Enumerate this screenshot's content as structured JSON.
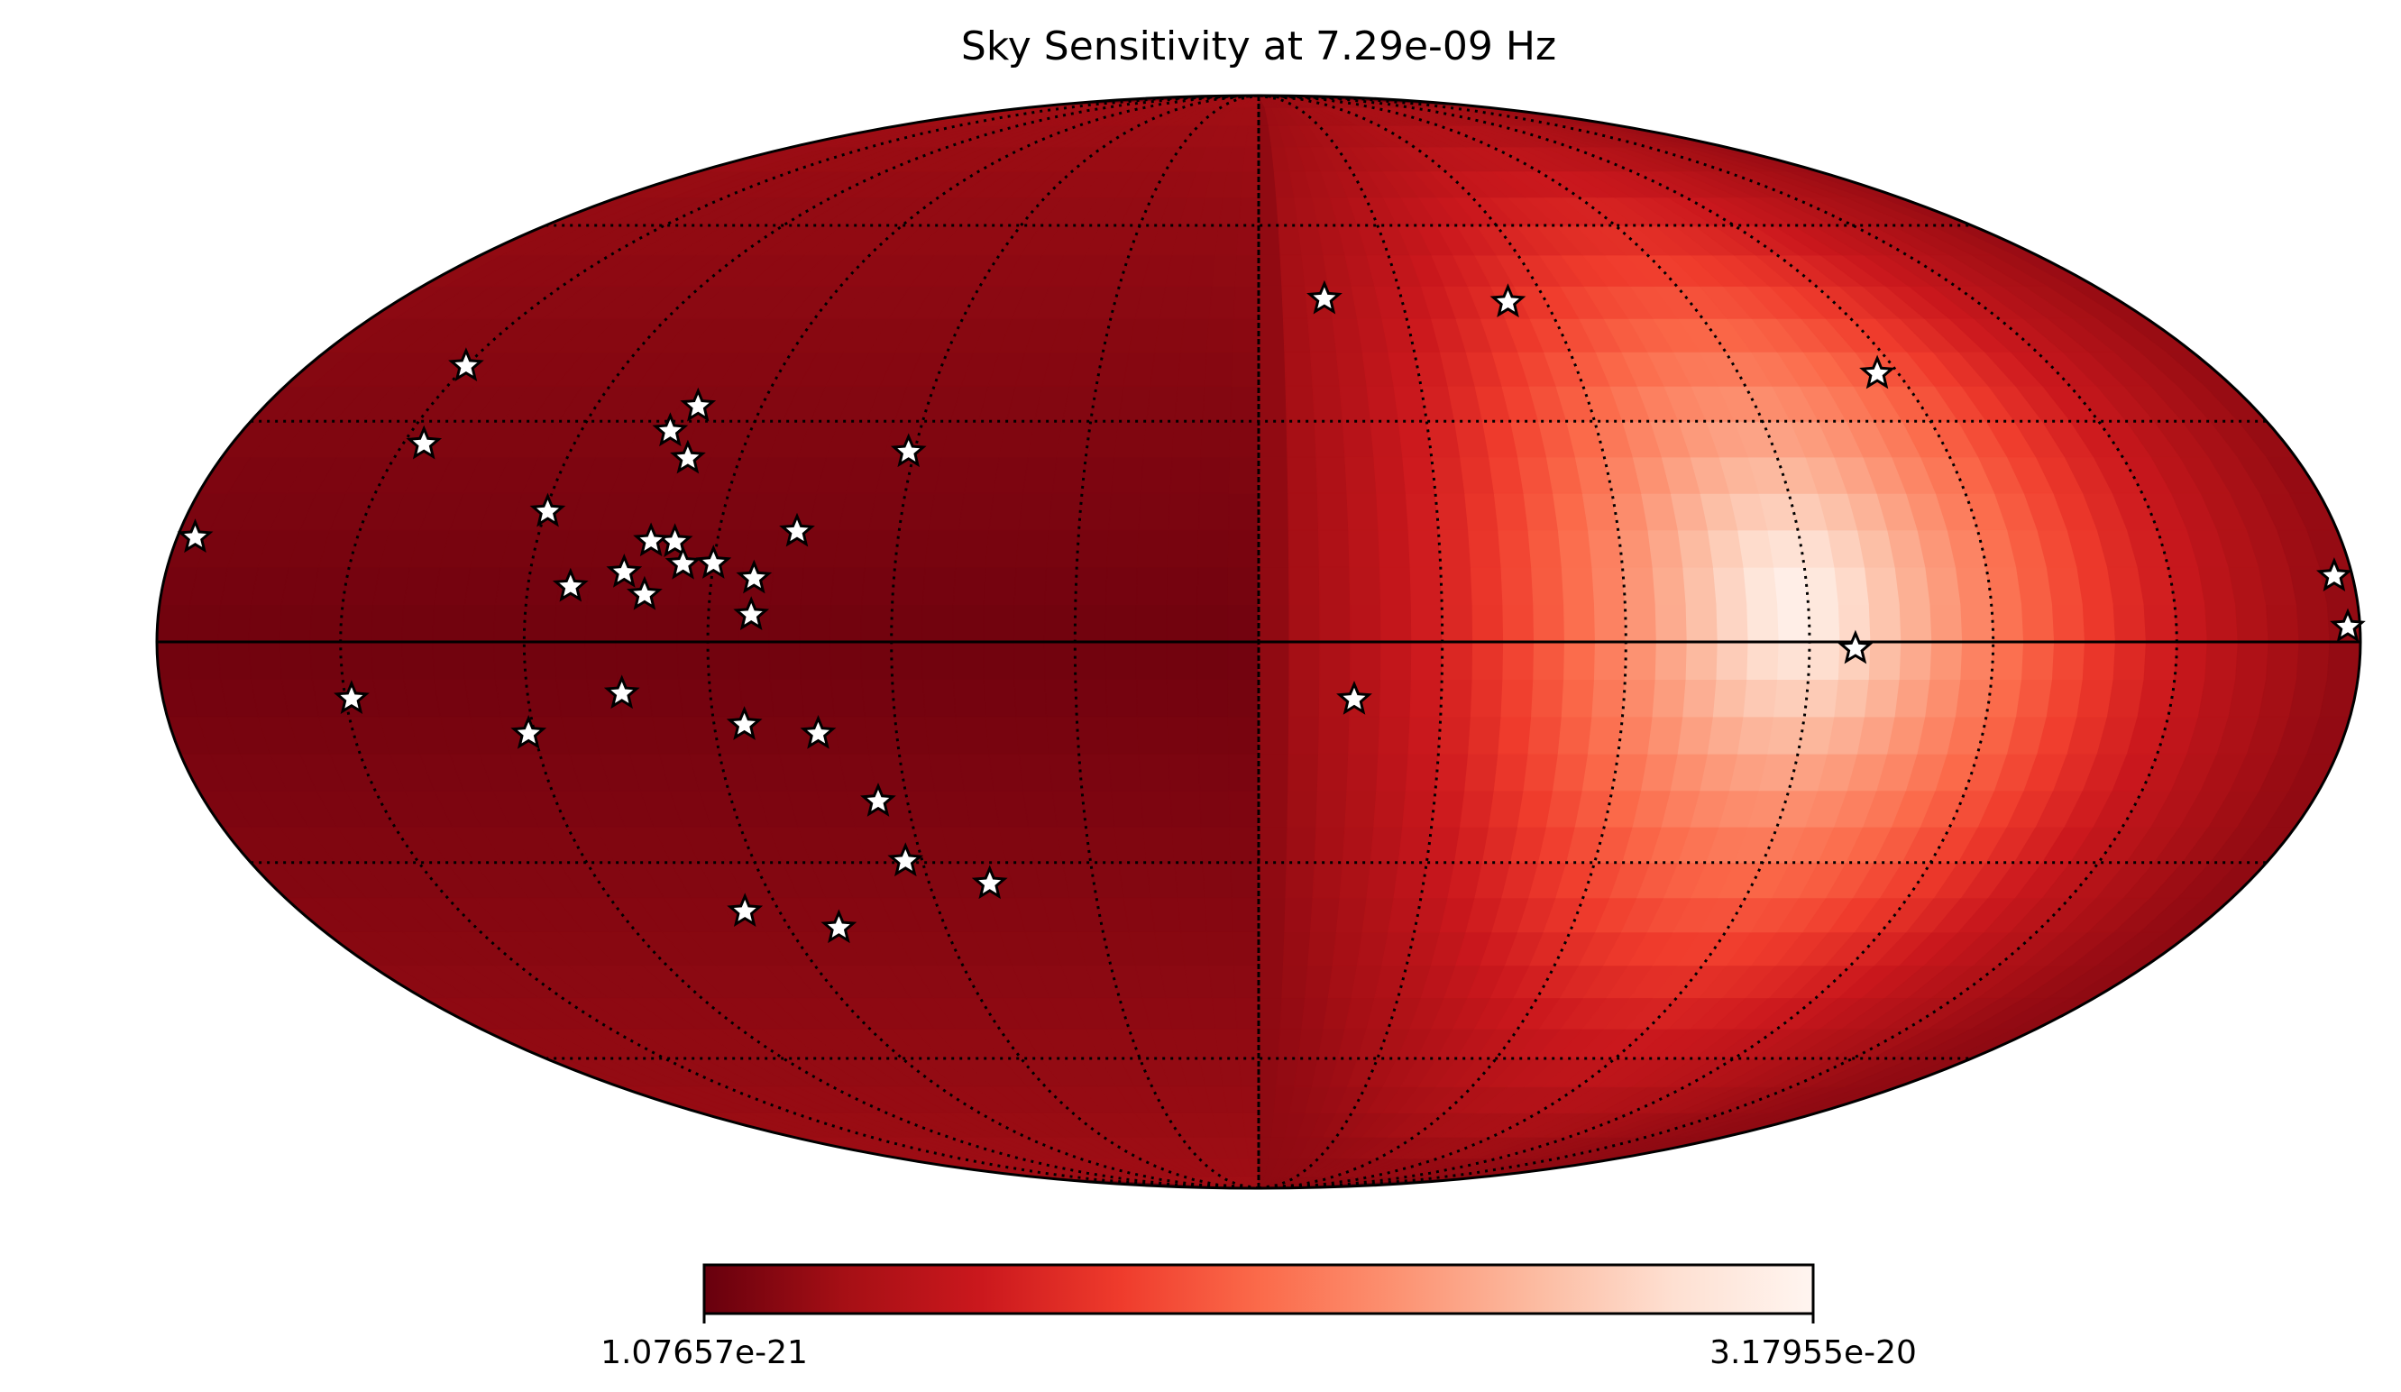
{
  "chart_data": {
    "type": "heatmap",
    "projection": "mollweide",
    "title": "Sky Sensitivity at 7.29e-09 Hz",
    "colormap": "Reds_r",
    "colorbar": {
      "min_label": "1.07657e-21",
      "max_label": "3.17955e-20",
      "min": 1.07657e-21,
      "max": 3.17955e-20,
      "stops": [
        "#67000d",
        "#a50f15",
        "#cb181d",
        "#ef3b2c",
        "#fb6a4a",
        "#fc9272",
        "#fcbba1",
        "#fee0d2",
        "#fff5f0"
      ]
    },
    "grid": true,
    "graticule": {
      "meridians_deg": [
        -150,
        -120,
        -90,
        -60,
        -30,
        0,
        30,
        60,
        90,
        120,
        150
      ],
      "parallels_deg": [
        -60,
        -30,
        30,
        60
      ]
    },
    "sensitivity_peak": {
      "lon_deg": 88,
      "lat_deg": 5
    },
    "stars": [
      {
        "lon": 178.0,
        "lat": 2.0
      },
      {
        "lon": 177.0,
        "lat": 8.8
      },
      {
        "lon": 97.5,
        "lat": -0.9
      },
      {
        "lon": 13.8,
        "lat": 48.0
      },
      {
        "lon": 52.0,
        "lat": 47.5
      },
      {
        "lon": 116.0,
        "lat": 36.8
      },
      {
        "lon": 15.7,
        "lat": -7.7
      },
      {
        "lon": -61.0,
        "lat": 25.7
      },
      {
        "lon": -77.0,
        "lat": 14.8
      },
      {
        "lon": -83.0,
        "lat": 8.5
      },
      {
        "lon": -83.0,
        "lat": 3.6
      },
      {
        "lon": -90.0,
        "lat": 10.5
      },
      {
        "lon": -97.0,
        "lat": 13.4
      },
      {
        "lon": -101.0,
        "lat": 13.5
      },
      {
        "lon": -95.0,
        "lat": 10.4
      },
      {
        "lon": -100.7,
        "lat": 6.3
      },
      {
        "lon": -104.5,
        "lat": 9.3
      },
      {
        "lon": -113.0,
        "lat": 7.4
      },
      {
        "lon": -99.0,
        "lat": 24.8
      },
      {
        "lon": -104.2,
        "lat": 28.6
      },
      {
        "lon": -101.5,
        "lat": 32.1
      },
      {
        "lon": -119.6,
        "lat": 17.5
      },
      {
        "lon": -150.0,
        "lat": 37.9
      },
      {
        "lon": -146.3,
        "lat": 26.8
      },
      {
        "lon": -177.0,
        "lat": 14.0
      },
      {
        "lon": -149.0,
        "lat": -7.6
      },
      {
        "lon": -104.5,
        "lat": -6.9
      },
      {
        "lon": -121.0,
        "lat": -12.3
      },
      {
        "lon": -85.0,
        "lat": -11.1
      },
      {
        "lon": -73.0,
        "lat": -12.3
      },
      {
        "lon": -65.0,
        "lat": -21.5
      },
      {
        "lon": -63.0,
        "lat": -29.8
      },
      {
        "lon": -49.0,
        "lat": -33.0
      },
      {
        "lon": -96.5,
        "lat": -37.0
      },
      {
        "lon": -80.5,
        "lat": -39.4
      }
    ]
  }
}
